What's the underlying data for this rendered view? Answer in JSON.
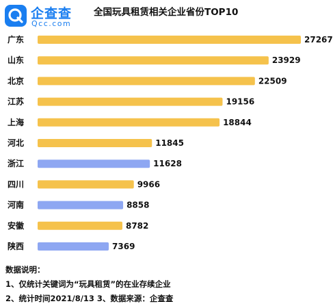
{
  "brand": {
    "name": "企查查",
    "domain": "Qcc.com",
    "icon": "qcc-logo-icon"
  },
  "colors": {
    "brand": "#1a7ef0",
    "bar_default": "#f5c24c",
    "bar_highlight": "#8ea7f2"
  },
  "chart_data": {
    "type": "bar",
    "orientation": "horizontal",
    "title": "全国玩具租赁相关企业省份TOP10",
    "categories": [
      "广东",
      "山东",
      "北京",
      "江苏",
      "上海",
      "河北",
      "浙江",
      "四川",
      "河南",
      "安徽",
      "陕西"
    ],
    "values": [
      27267,
      23929,
      22509,
      19156,
      18844,
      11845,
      11628,
      9966,
      8858,
      8782,
      7369
    ],
    "highlighted": [
      "浙江",
      "河南",
      "陕西"
    ],
    "xlim": [
      0,
      27267
    ],
    "grid": false,
    "legend": "none"
  },
  "notes": {
    "heading": "数据说明：",
    "line1": "1、仅统计关键词为“玩具租赁”的在业存续企业",
    "line2": "2、统计时间2021/8/13   3、数据来源：企查查"
  }
}
